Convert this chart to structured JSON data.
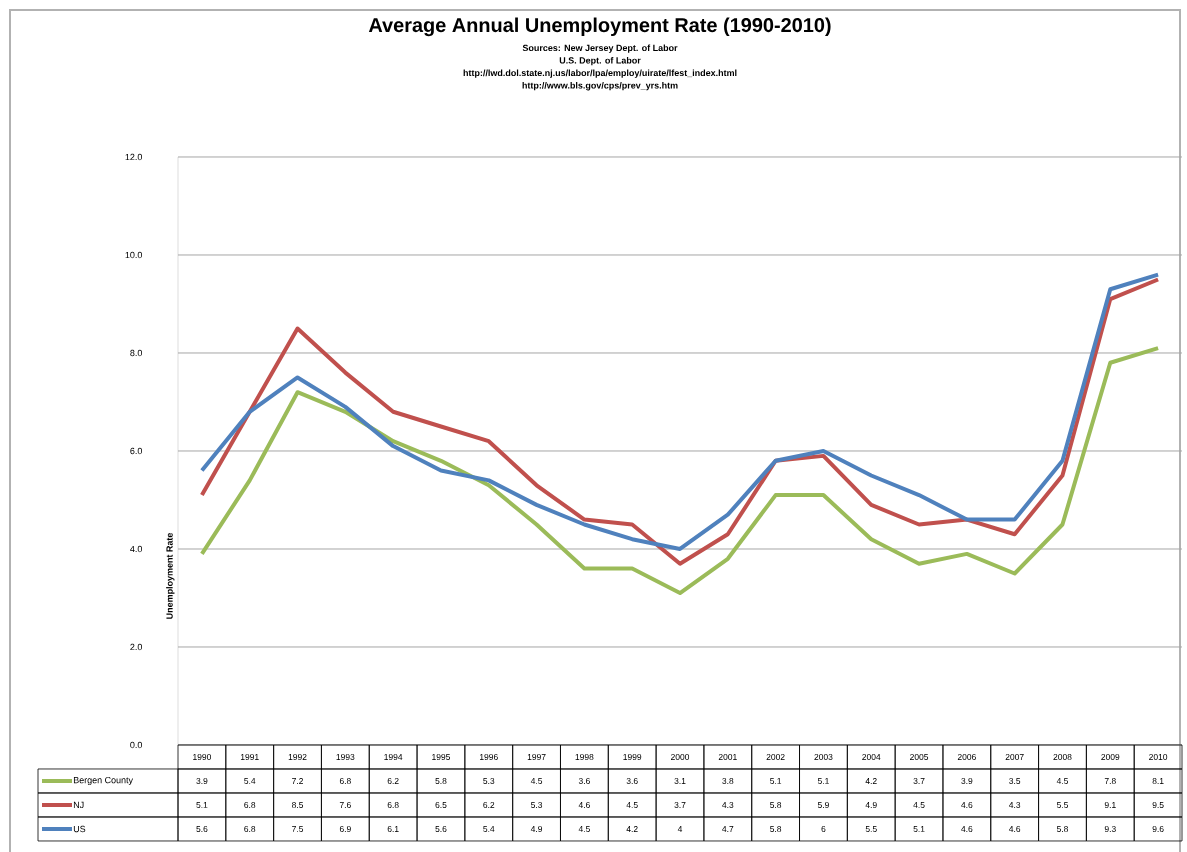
{
  "chart_data": {
    "type": "line",
    "title": "Average Annual Unemployment Rate (1990-2010)",
    "annotations": [
      "Sources: New Jersey Dept. of Labor",
      "U.S. Dept. of Labor",
      "http://lwd.dol.state.nj.us/labor/lpa/employ/uirate/lfest_index.html",
      "http://www.bls.gov/cps/prev_yrs.htm"
    ],
    "ylabel": "Unemployment Rate",
    "categories": [
      "1990",
      "1991",
      "1992",
      "1993",
      "1994",
      "1995",
      "1996",
      "1997",
      "1998",
      "1999",
      "2000",
      "2001",
      "2002",
      "2003",
      "2004",
      "2005",
      "2006",
      "2007",
      "2008",
      "2009",
      "2010"
    ],
    "series": [
      {
        "name": "Bergen County",
        "color": "#9bbb59",
        "values": [
          3.9,
          5.4,
          7.2,
          6.8,
          6.2,
          5.8,
          5.3,
          4.5,
          3.6,
          3.6,
          3.1,
          3.8,
          5.1,
          5.1,
          4.2,
          3.7,
          3.9,
          3.5,
          4.5,
          7.8,
          8.1
        ]
      },
      {
        "name": "NJ",
        "color": "#c0504d",
        "values": [
          5.1,
          6.8,
          8.5,
          7.6,
          6.8,
          6.5,
          6.2,
          5.3,
          4.6,
          4.5,
          3.7,
          4.3,
          5.8,
          5.9,
          4.9,
          4.5,
          4.6,
          4.3,
          5.5,
          9.1,
          9.5
        ]
      },
      {
        "name": "US",
        "color": "#4f81bd",
        "values": [
          5.6,
          6.8,
          7.5,
          6.9,
          6.1,
          5.6,
          5.4,
          4.9,
          4.5,
          4.2,
          4,
          4.7,
          5.8,
          6,
          5.5,
          5.1,
          4.6,
          4.6,
          5.8,
          9.3,
          9.6
        ]
      }
    ],
    "ylim": [
      0,
      12
    ],
    "yticks": [
      {
        "value": 0,
        "label": "0.0"
      },
      {
        "value": 2,
        "label": "2.0"
      },
      {
        "value": 4,
        "label": "4.0"
      },
      {
        "value": 6,
        "label": "6.0"
      },
      {
        "value": 8,
        "label": "8.0"
      },
      {
        "value": 10,
        "label": "10.0"
      },
      {
        "value": 12,
        "label": "12.0"
      }
    ],
    "grid": "y",
    "legend": "bottom",
    "data_labels": true,
    "marker": "none",
    "line_style": "solid"
  }
}
